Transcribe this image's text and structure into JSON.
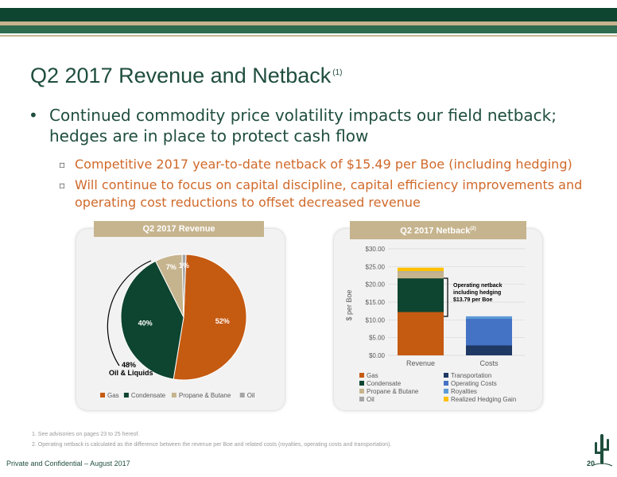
{
  "slide": {
    "title": "Q2 2017 Revenue and Netback",
    "title_footnote_mark": "(1)",
    "bullet": "Continued commodity price volatility impacts our field netback; hedges are in place to protect cash flow",
    "sub_bullets": [
      "Competitive 2017 year-to-date netback of $15.49 per Boe (including hedging)",
      "Will continue to focus on capital discipline, capital efficiency improvements and operating cost reductions to offset decreased revenue"
    ],
    "footnotes": [
      "1.   See advisories on pages 23 to 25 hereof.",
      "2.   Operating netback is calculated as the difference between the revenue per Boe and related costs (royalties, operating costs and transportation)."
    ],
    "footer_text": "Private and Confidential – August 2017",
    "page_number": "20"
  },
  "chart_data": [
    {
      "type": "pie",
      "title": "Q2 2017 Revenue",
      "slices": [
        {
          "name": "Gas",
          "value": 52,
          "label": "52%",
          "color": "#c55a11"
        },
        {
          "name": "Condensate",
          "value": 40,
          "label": "40%",
          "color": "#0e4530"
        },
        {
          "name": "Propane & Butane",
          "value": 7,
          "label": "7%",
          "color": "#c6b48e"
        },
        {
          "name": "Oil",
          "value": 1,
          "label": "1%",
          "color": "#a5a5a5"
        }
      ],
      "annotation": {
        "value": "48%",
        "text": "Oil & Liquids"
      },
      "legend_position": "bottom"
    },
    {
      "type": "bar",
      "stacked": true,
      "title": "Q2 2017 Netback",
      "title_footnote_mark": "(2)",
      "categories": [
        "Revenue",
        "Costs"
      ],
      "ylabel": "$ per Boe",
      "ylim": [
        0,
        30
      ],
      "yticks": [
        "$0.00",
        "$5.00",
        "$10.00",
        "$15.00",
        "$20.00",
        "$25.00",
        "$30.00"
      ],
      "series": [
        {
          "name": "Gas",
          "color": "#c55a11",
          "values": [
            12.2,
            0
          ]
        },
        {
          "name": "Condensate",
          "color": "#0e4530",
          "values": [
            9.5,
            0
          ]
        },
        {
          "name": "Propane & Butane",
          "color": "#c6b48e",
          "values": [
            1.7,
            0
          ]
        },
        {
          "name": "Oil",
          "color": "#a5a5a5",
          "values": [
            0.3,
            0
          ]
        },
        {
          "name": "Transportation",
          "color": "#1f3864",
          "values": [
            0,
            2.8
          ]
        },
        {
          "name": "Operating Costs",
          "color": "#4472c4",
          "values": [
            0,
            7.5
          ]
        },
        {
          "name": "Royalties",
          "color": "#5b9bd5",
          "values": [
            0,
            0.7
          ]
        },
        {
          "name": "Realized Hedging Gain",
          "color": "#ffc000",
          "values": [
            1.0,
            0
          ]
        }
      ],
      "annotation": "Operating netback including hedging $13.79 per Boe",
      "legend_position": "bottom",
      "grid": true
    }
  ]
}
